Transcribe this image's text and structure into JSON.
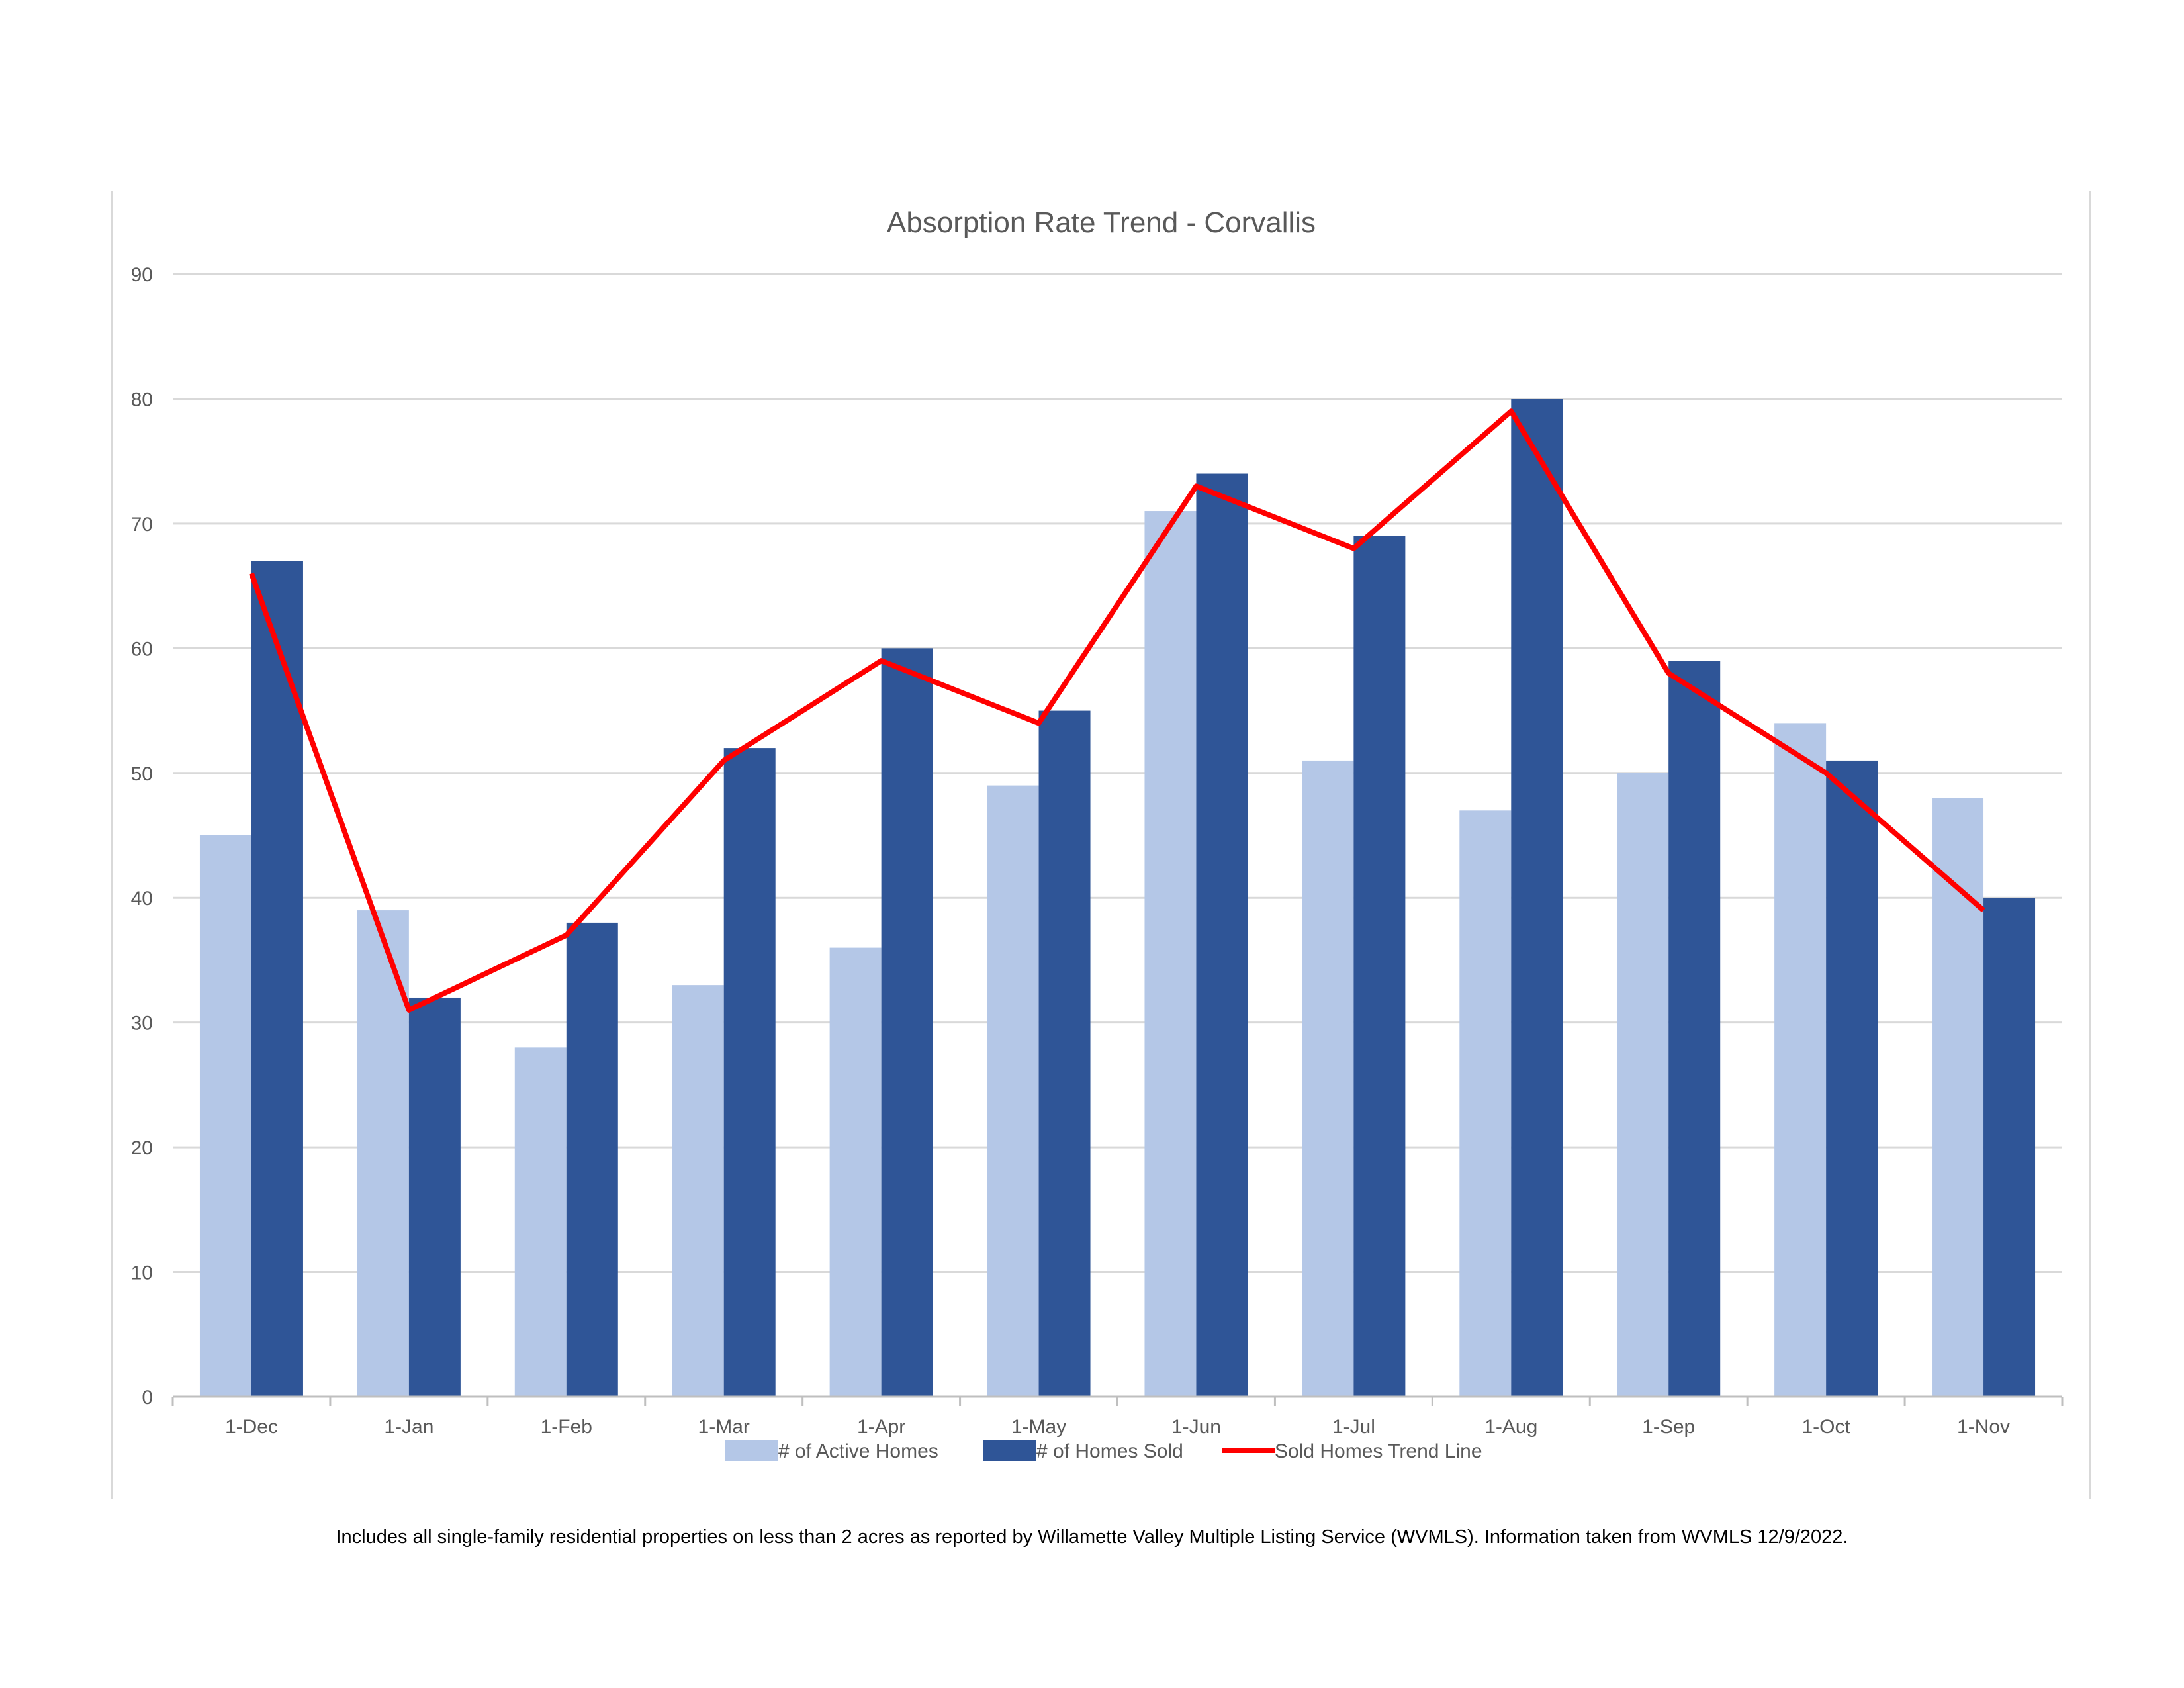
{
  "chart_data": {
    "type": "bar",
    "title": "Absorption Rate Trend - Corvallis",
    "xlabel": "",
    "ylabel": "",
    "categories": [
      "1-Dec",
      "1-Jan",
      "1-Feb",
      "1-Mar",
      "1-Apr",
      "1-May",
      "1-Jun",
      "1-Jul",
      "1-Aug",
      "1-Sep",
      "1-Oct",
      "1-Nov"
    ],
    "ylim": [
      0,
      90
    ],
    "yticks": [
      0,
      10,
      20,
      30,
      40,
      50,
      60,
      70,
      80,
      90
    ],
    "grid": true,
    "legend_position": "bottom",
    "series": [
      {
        "name": "# of Active Homes",
        "kind": "bar",
        "color": "#b4c7e7",
        "values": [
          45,
          39,
          28,
          33,
          36,
          49,
          71,
          51,
          47,
          50,
          54,
          48
        ]
      },
      {
        "name": "# of Homes Sold",
        "kind": "bar",
        "color": "#2f5597",
        "values": [
          67,
          32,
          38,
          52,
          60,
          55,
          74,
          69,
          80,
          59,
          51,
          40
        ]
      },
      {
        "name": "Sold Homes Trend Line",
        "kind": "line",
        "color": "#ff0000",
        "values": [
          66,
          31,
          37,
          51,
          59,
          54,
          73,
          68,
          79,
          58,
          50,
          39
        ]
      }
    ]
  },
  "footnote": "Includes all single-family residential properties on less than 2 acres as reported by Willamette Valley Multiple Listing Service (WVMLS). Information taken from WVMLS 12/9/2022."
}
